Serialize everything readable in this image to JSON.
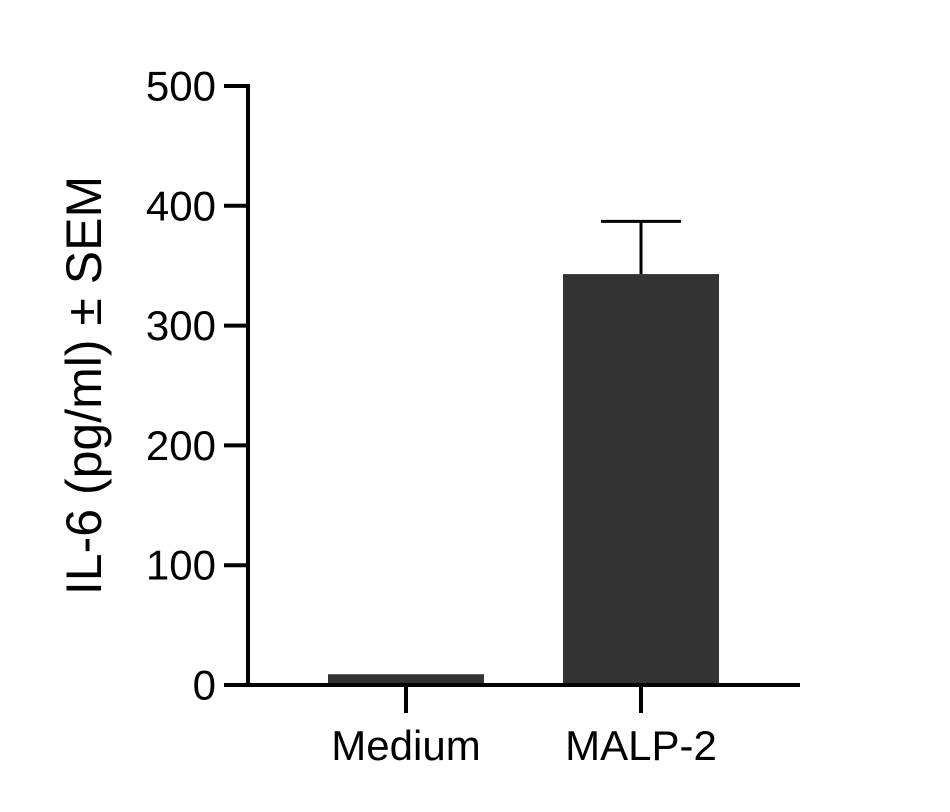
{
  "chart_data": {
    "type": "bar",
    "title": "",
    "xlabel": "",
    "ylabel": "IL-6 (pg/ml) ± SEM",
    "categories": [
      "Medium",
      "MALP-2"
    ],
    "values": [
      9,
      343
    ],
    "error_plus": [
      0,
      44
    ],
    "ylim": [
      0,
      500
    ],
    "yticks": [
      0,
      100,
      200,
      300,
      400,
      500
    ],
    "ytick_labels": [
      "0",
      "100",
      "200",
      "300",
      "400",
      "500"
    ],
    "grid": false,
    "legend": "none",
    "colors": {
      "bar": "#333333",
      "axis": "#000000",
      "text": "#000000"
    }
  }
}
